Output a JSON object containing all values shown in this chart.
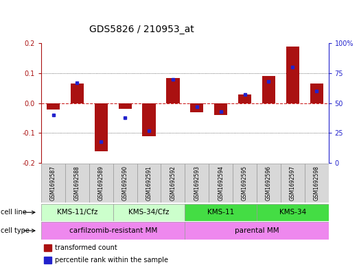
{
  "title": "GDS5826 / 210953_at",
  "samples": [
    "GSM1692587",
    "GSM1692588",
    "GSM1692589",
    "GSM1692590",
    "GSM1692591",
    "GSM1692592",
    "GSM1692593",
    "GSM1692594",
    "GSM1692595",
    "GSM1692596",
    "GSM1692597",
    "GSM1692598"
  ],
  "transformed_count": [
    -0.022,
    0.065,
    -0.16,
    -0.018,
    -0.11,
    0.085,
    -0.03,
    -0.04,
    0.03,
    0.09,
    0.19,
    0.065
  ],
  "percentile_rank": [
    40,
    67,
    18,
    38,
    27,
    70,
    47,
    43,
    57,
    68,
    80,
    60
  ],
  "red_color": "#aa1111",
  "blue_color": "#2222cc",
  "ylim_left": [
    -0.2,
    0.2
  ],
  "ylim_right": [
    0,
    100
  ],
  "yticks_left": [
    -0.2,
    -0.1,
    0.0,
    0.1,
    0.2
  ],
  "yticks_right": [
    0,
    25,
    50,
    75,
    100
  ],
  "ytick_labels_right": [
    "0",
    "25",
    "50",
    "75",
    "100%"
  ],
  "cell_line_groups": [
    {
      "label": "KMS-11/Cfz",
      "start": 0,
      "end": 3,
      "color": "#ccffcc"
    },
    {
      "label": "KMS-34/Cfz",
      "start": 3,
      "end": 6,
      "color": "#ccffcc"
    },
    {
      "label": "KMS-11",
      "start": 6,
      "end": 9,
      "color": "#44dd44"
    },
    {
      "label": "KMS-34",
      "start": 9,
      "end": 12,
      "color": "#44dd44"
    }
  ],
  "cell_type_groups": [
    {
      "label": "carfilzomib-resistant MM",
      "start": 0,
      "end": 6,
      "color": "#ee88ee"
    },
    {
      "label": "parental MM",
      "start": 6,
      "end": 12,
      "color": "#ee88ee"
    }
  ],
  "legend_red": "transformed count",
  "legend_blue": "percentile rank within the sample",
  "bar_width": 0.55,
  "zero_line_color": "#cc2222",
  "dotted_color": "#444444",
  "bg_color": "#ffffff",
  "plot_bg_color": "#ffffff",
  "title_fontsize": 10,
  "tick_fontsize": 7,
  "annot_fontsize": 7,
  "sample_fontsize": 5.5,
  "group_fontsize": 7.5
}
